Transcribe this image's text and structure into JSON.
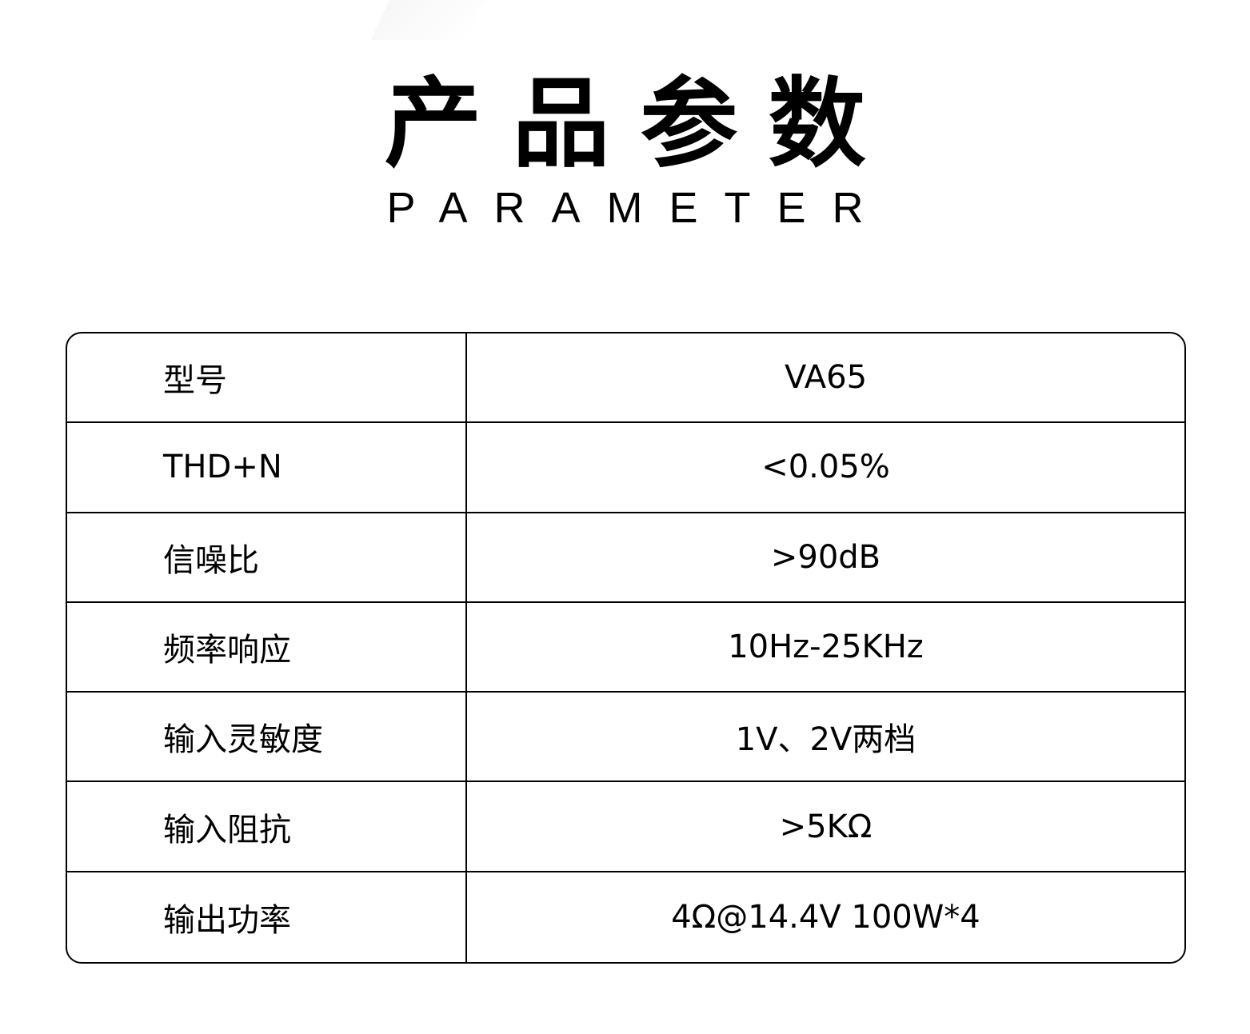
{
  "header": {
    "title": "产品参数",
    "subtitle": "PARAMETER"
  },
  "specs": [
    {
      "label": "型号",
      "value": "VA65"
    },
    {
      "label": "THD+N",
      "value": "<0.05%"
    },
    {
      "label": "信噪比",
      "value": ">90dB"
    },
    {
      "label": "频率响应",
      "value": "10Hz-25KHz"
    },
    {
      "label": "输入灵敏度",
      "value": "1V、2V两档"
    },
    {
      "label": "输入阻抗",
      "value": ">5KΩ"
    },
    {
      "label": "输出功率",
      "value": "4Ω@14.4V 100W*4"
    }
  ]
}
